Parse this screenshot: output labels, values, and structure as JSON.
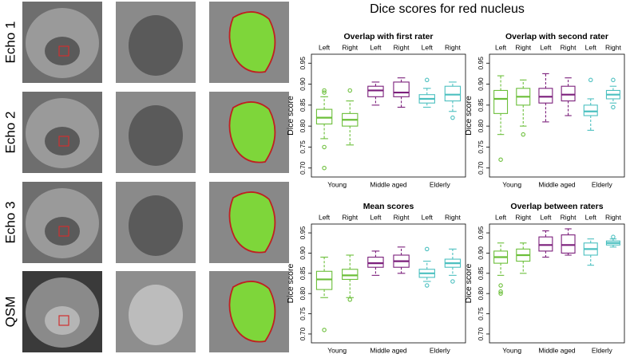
{
  "title": "Dice scores for red nucleus",
  "image_panels": {
    "rows": [
      "Echo 1",
      "Echo 2",
      "Echo 3",
      "QSM"
    ]
  },
  "chart_data": [
    {
      "type": "box",
      "title": "Overlap with first rater",
      "ylabel": "Dice score",
      "categories": [
        "Left",
        "Right",
        "Left",
        "Right",
        "Left",
        "Right"
      ],
      "groups": [
        "Young",
        "Middle aged",
        "Elderly"
      ],
      "group_colors": [
        "#6cbf3a",
        "#7b1f7b",
        "#4cc0c0"
      ],
      "ylim": [
        0.69,
        0.96
      ],
      "yticks": [
        {
          "value": 0.7,
          "label": "0.70"
        },
        0.75,
        {
          "value": 0.8,
          "label": "0.80"
        },
        0.85,
        {
          "value": 0.9,
          "label": "0.90"
        },
        0.95
      ],
      "boxes": [
        {
          "whislo": 0.77,
          "q1": 0.805,
          "med": 0.82,
          "q3": 0.84,
          "whishi": 0.87,
          "fliers": [
            0.88,
            0.885,
            0.75,
            0.7
          ]
        },
        {
          "whislo": 0.755,
          "q1": 0.8,
          "med": 0.815,
          "q3": 0.83,
          "whishi": 0.86,
          "fliers": [
            0.885
          ]
        },
        {
          "whislo": 0.85,
          "q1": 0.87,
          "med": 0.885,
          "q3": 0.895,
          "whishi": 0.905,
          "fliers": []
        },
        {
          "whislo": 0.845,
          "q1": 0.87,
          "med": 0.88,
          "q3": 0.905,
          "whishi": 0.915,
          "fliers": []
        },
        {
          "whislo": 0.845,
          "q1": 0.855,
          "med": 0.865,
          "q3": 0.875,
          "whishi": 0.89,
          "fliers": [
            0.91
          ]
        },
        {
          "whislo": 0.835,
          "q1": 0.86,
          "med": 0.875,
          "q3": 0.895,
          "whishi": 0.905,
          "fliers": [
            0.82
          ]
        }
      ]
    },
    {
      "type": "box",
      "title": "Overlap with second rater",
      "ylabel": "Dice score",
      "categories": [
        "Left",
        "Right",
        "Left",
        "Right",
        "Left",
        "Right"
      ],
      "groups": [
        "Young",
        "Middle aged",
        "Elderly"
      ],
      "group_colors": [
        "#6cbf3a",
        "#7b1f7b",
        "#4cc0c0"
      ],
      "ylim": [
        0.69,
        0.96
      ],
      "yticks": [
        {
          "value": 0.7,
          "label": "0.70"
        },
        0.75,
        {
          "value": 0.8,
          "label": "0.80"
        },
        0.85,
        {
          "value": 0.9,
          "label": "0.90"
        },
        0.95
      ],
      "boxes": [
        {
          "whislo": 0.78,
          "q1": 0.83,
          "med": 0.865,
          "q3": 0.885,
          "whishi": 0.92,
          "fliers": [
            0.72
          ]
        },
        {
          "whislo": 0.8,
          "q1": 0.85,
          "med": 0.87,
          "q3": 0.89,
          "whishi": 0.91,
          "fliers": [
            0.78
          ]
        },
        {
          "whislo": 0.81,
          "q1": 0.855,
          "med": 0.87,
          "q3": 0.89,
          "whishi": 0.925,
          "fliers": []
        },
        {
          "whislo": 0.825,
          "q1": 0.86,
          "med": 0.875,
          "q3": 0.895,
          "whishi": 0.915,
          "fliers": []
        },
        {
          "whislo": 0.79,
          "q1": 0.825,
          "med": 0.835,
          "q3": 0.85,
          "whishi": 0.865,
          "fliers": [
            0.91
          ]
        },
        {
          "whislo": 0.855,
          "q1": 0.865,
          "med": 0.875,
          "q3": 0.885,
          "whishi": 0.895,
          "fliers": [
            0.91,
            0.845
          ]
        }
      ]
    },
    {
      "type": "box",
      "title": "Mean scores",
      "ylabel": "Dice score",
      "categories": [
        "Left",
        "Right",
        "Left",
        "Right",
        "Left",
        "Right"
      ],
      "groups": [
        "Young",
        "Middle aged",
        "Elderly"
      ],
      "group_colors": [
        "#6cbf3a",
        "#7b1f7b",
        "#4cc0c0"
      ],
      "ylim": [
        0.69,
        0.96
      ],
      "yticks": [
        {
          "value": 0.7,
          "label": "0.70"
        },
        0.75,
        {
          "value": 0.8,
          "label": "0.80"
        },
        0.85,
        {
          "value": 0.9,
          "label": "0.90"
        },
        0.95
      ],
      "boxes": [
        {
          "whislo": 0.79,
          "q1": 0.81,
          "med": 0.835,
          "q3": 0.855,
          "whishi": 0.89,
          "fliers": [
            0.71
          ]
        },
        {
          "whislo": 0.79,
          "q1": 0.835,
          "med": 0.845,
          "q3": 0.86,
          "whishi": 0.895,
          "fliers": [
            0.785
          ]
        },
        {
          "whislo": 0.845,
          "q1": 0.865,
          "med": 0.875,
          "q3": 0.89,
          "whishi": 0.905,
          "fliers": []
        },
        {
          "whislo": 0.85,
          "q1": 0.865,
          "med": 0.88,
          "q3": 0.895,
          "whishi": 0.915,
          "fliers": []
        },
        {
          "whislo": 0.83,
          "q1": 0.84,
          "med": 0.85,
          "q3": 0.86,
          "whishi": 0.88,
          "fliers": [
            0.91,
            0.82
          ]
        },
        {
          "whislo": 0.845,
          "q1": 0.865,
          "med": 0.875,
          "q3": 0.885,
          "whishi": 0.91,
          "fliers": [
            0.83
          ]
        }
      ]
    },
    {
      "type": "box",
      "title": "Overlap between raters",
      "ylabel": "Dice score",
      "categories": [
        "Left",
        "Right",
        "Left",
        "Right",
        "Left",
        "Right"
      ],
      "groups": [
        "Young",
        "Middle aged",
        "Elderly"
      ],
      "group_colors": [
        "#6cbf3a",
        "#7b1f7b",
        "#4cc0c0"
      ],
      "ylim": [
        0.69,
        0.96
      ],
      "yticks": [
        {
          "value": 0.7,
          "label": "0.70"
        },
        0.75,
        {
          "value": 0.8,
          "label": "0.80"
        },
        0.85,
        {
          "value": 0.9,
          "label": "0.90"
        },
        0.95
      ],
      "boxes": [
        {
          "whislo": 0.845,
          "q1": 0.875,
          "med": 0.89,
          "q3": 0.905,
          "whishi": 0.925,
          "fliers": [
            0.82,
            0.805,
            0.8
          ]
        },
        {
          "whislo": 0.85,
          "q1": 0.88,
          "med": 0.895,
          "q3": 0.91,
          "whishi": 0.925,
          "fliers": []
        },
        {
          "whislo": 0.89,
          "q1": 0.905,
          "med": 0.92,
          "q3": 0.94,
          "whishi": 0.955,
          "fliers": []
        },
        {
          "whislo": 0.895,
          "q1": 0.9,
          "med": 0.92,
          "q3": 0.945,
          "whishi": 0.96,
          "fliers": []
        },
        {
          "whislo": 0.87,
          "q1": 0.895,
          "med": 0.91,
          "q3": 0.925,
          "whishi": 0.935,
          "fliers": []
        },
        {
          "whislo": 0.915,
          "q1": 0.92,
          "med": 0.925,
          "q3": 0.93,
          "whishi": 0.935,
          "fliers": [
            0.94
          ]
        }
      ]
    }
  ]
}
